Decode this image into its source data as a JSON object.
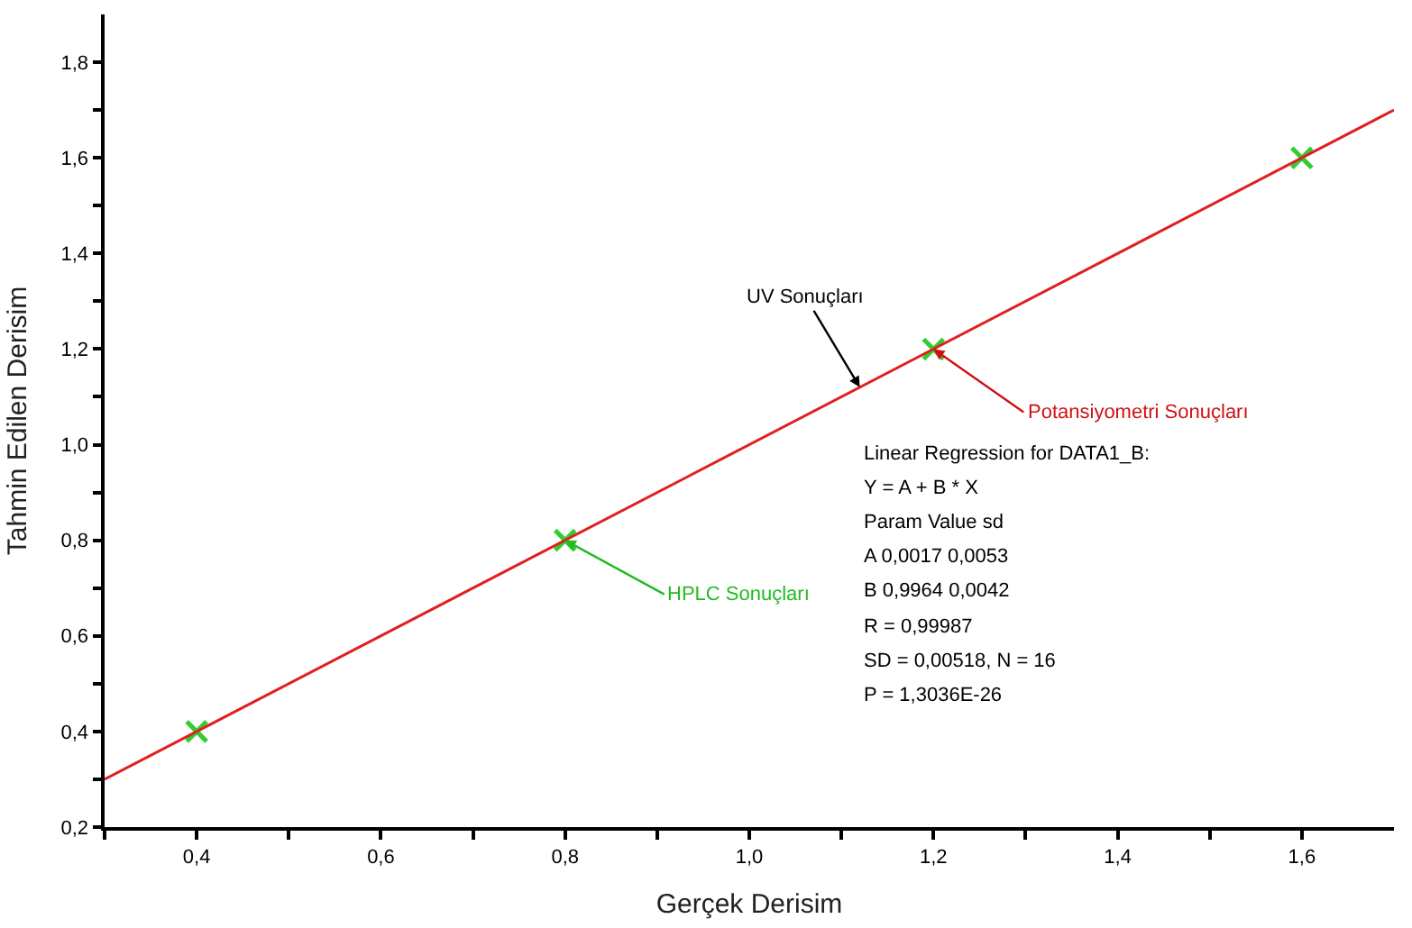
{
  "chart_data": {
    "type": "scatter",
    "xlabel": "Gerçek Derisim",
    "ylabel": "Tahmin Edilen Derisim",
    "x": [
      0.4,
      0.8,
      1.2,
      1.6
    ],
    "series": [
      {
        "color": "#33cc33",
        "marker": "cross",
        "values": [
          0.4,
          0.8,
          1.2,
          1.6
        ]
      },
      {
        "type": "line",
        "color": "#e02020",
        "line_style": "solid",
        "x": [
          0.3,
          1.7
        ],
        "values": [
          0.3,
          1.7
        ]
      }
    ],
    "xlim": [
      0.3,
      1.7
    ],
    "ylim": [
      0.2,
      1.9
    ],
    "xticks": [
      {
        "value": 0.3,
        "label": null
      },
      {
        "value": 0.4,
        "label": "0,4"
      },
      {
        "value": 0.5,
        "label": null
      },
      {
        "value": 0.6,
        "label": "0,6"
      },
      {
        "value": 0.7,
        "label": null
      },
      {
        "value": 0.8,
        "label": "0,8"
      },
      {
        "value": 0.9,
        "label": null
      },
      {
        "value": 1.0,
        "label": "1,0"
      },
      {
        "value": 1.1,
        "label": null
      },
      {
        "value": 1.2,
        "label": "1,2"
      },
      {
        "value": 1.3,
        "label": null
      },
      {
        "value": 1.4,
        "label": "1,4"
      },
      {
        "value": 1.5,
        "label": null
      },
      {
        "value": 1.6,
        "label": "1,6"
      }
    ],
    "yticks": [
      {
        "value": 0.2,
        "label": "0,2"
      },
      {
        "value": 0.3,
        "label": null
      },
      {
        "value": 0.4,
        "label": "0,4"
      },
      {
        "value": 0.5,
        "label": null
      },
      {
        "value": 0.6,
        "label": "0,6"
      },
      {
        "value": 0.7,
        "label": null
      },
      {
        "value": 0.8,
        "label": "0,8"
      },
      {
        "value": 0.9,
        "label": null
      },
      {
        "value": 1.0,
        "label": "1,0"
      },
      {
        "value": 1.1,
        "label": null
      },
      {
        "value": 1.2,
        "label": "1,2"
      },
      {
        "value": 1.3,
        "label": null
      },
      {
        "value": 1.4,
        "label": "1,4"
      },
      {
        "value": 1.5,
        "label": null
      },
      {
        "value": 1.6,
        "label": "1,6"
      },
      {
        "value": 1.7,
        "label": null
      },
      {
        "value": 1.8,
        "label": "1,8"
      }
    ],
    "annotations": [
      {
        "text": "UV Sonuçları",
        "x": 1.12,
        "y": 1.12
      },
      {
        "text": "Potansiyometri Sonuçları",
        "x": 1.2,
        "y": 1.2
      },
      {
        "text": "HPLC Sonuçları",
        "x": 0.8,
        "y": 0.8
      },
      "Linear Regression for DATA1_B:",
      "Y = A + B * X",
      "Param Value sd",
      "A 0,0017 0,0053",
      "B 0,9964 0,0042",
      "R = 0,99987",
      "SD = 0,00518, N = 16",
      "P = 1,3036E-26"
    ]
  }
}
